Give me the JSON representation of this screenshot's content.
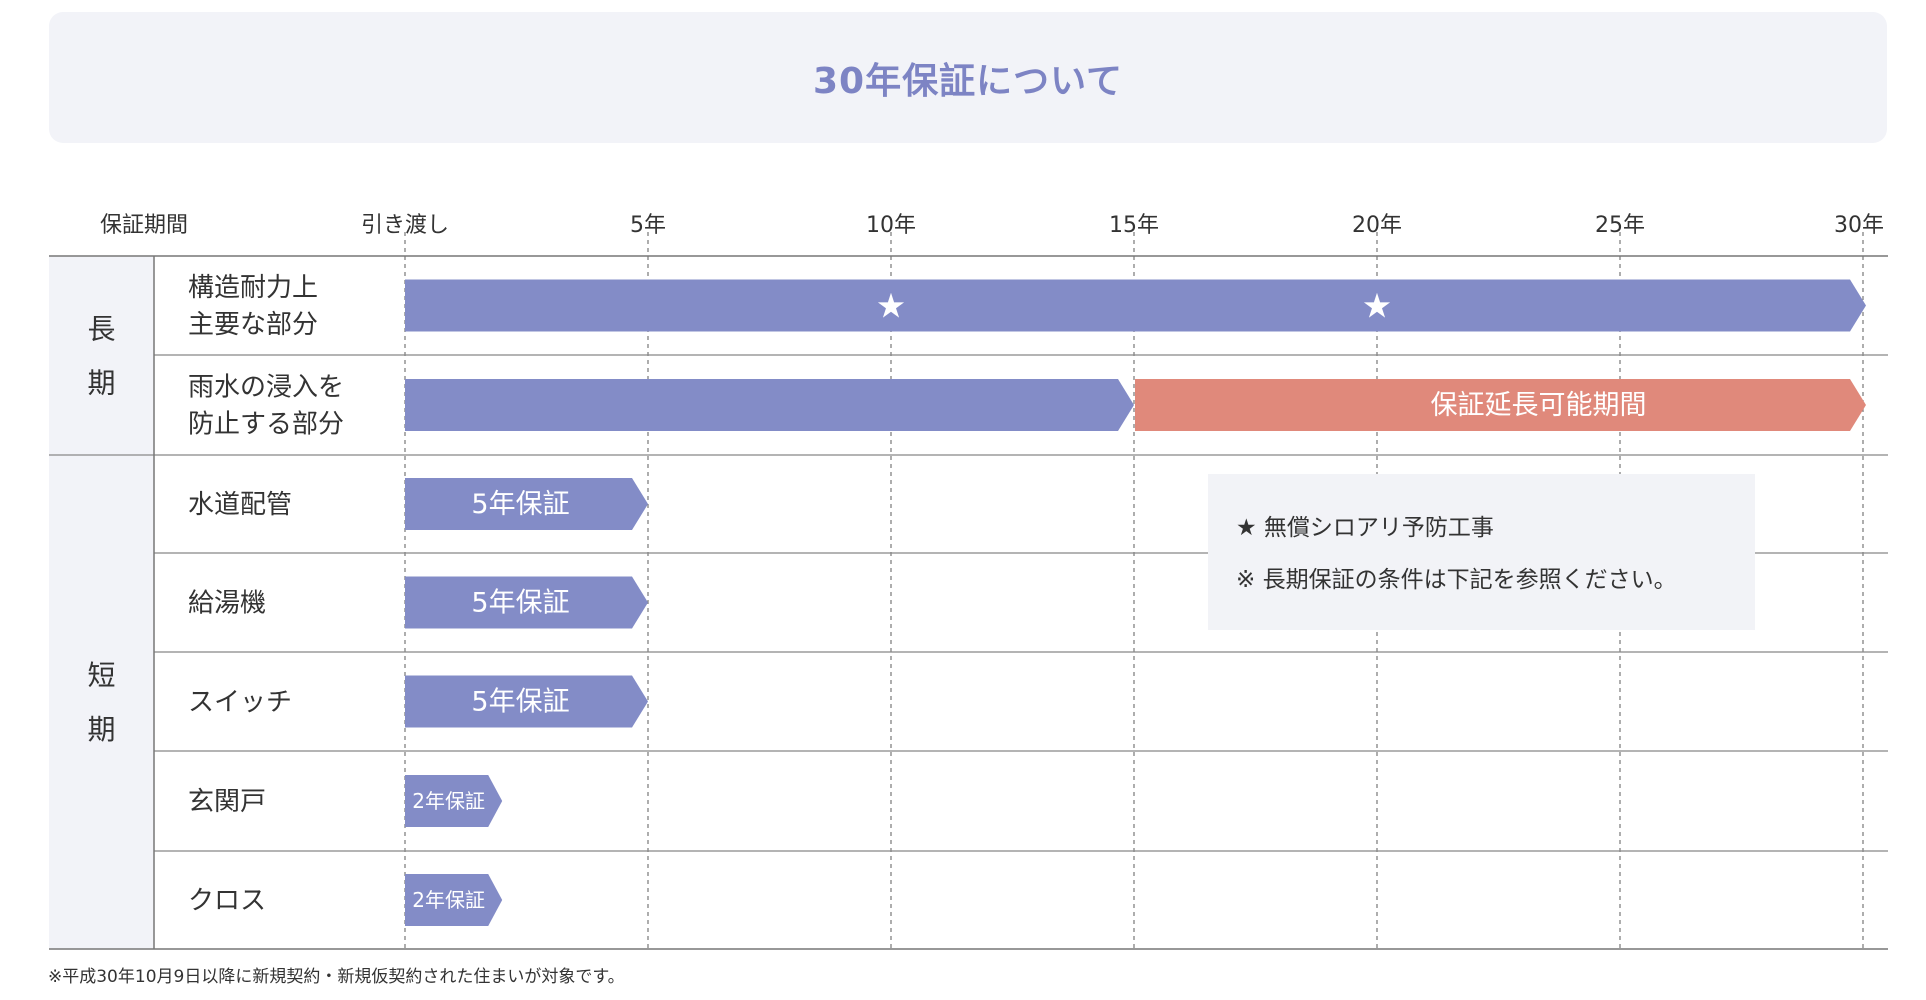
{
  "title": "30年保証について",
  "footnote": "※平成30年10月9日以降に新規契約・新規仮契約された住まいが対象です。",
  "colors": {
    "bar": "#838cc7",
    "extension": "#e0897b",
    "title": "#7d84c4",
    "header_bg": "#f2f3f8",
    "legend_bg": "#f2f3f7"
  },
  "legend": {
    "line1": "★ 無償シロアリ予防工事",
    "line2": "※ 長期保証の条件は下記を参照ください。"
  },
  "chart_data": {
    "type": "gantt",
    "xlabel": "保証期間",
    "xlim": [
      0,
      30
    ],
    "ticks": [
      {
        "value": 0,
        "label": "引き渡し"
      },
      {
        "value": 5,
        "label": "5年"
      },
      {
        "value": 10,
        "label": "10年"
      },
      {
        "value": 15,
        "label": "15年"
      },
      {
        "value": 20,
        "label": "20年"
      },
      {
        "value": 25,
        "label": "25年"
      },
      {
        "value": 30,
        "label": "30年"
      }
    ],
    "groups": [
      {
        "label": "長期",
        "rows": [
          0,
          1
        ]
      },
      {
        "label": "短期",
        "rows": [
          2,
          3,
          4,
          5,
          6
        ]
      }
    ],
    "rows": [
      {
        "label_lines": [
          "構造耐力上",
          "主要な部分"
        ],
        "bars": [
          {
            "start": 0,
            "end": 30,
            "color": "bar",
            "label": "",
            "size": "large"
          }
        ],
        "stars": [
          10,
          20
        ]
      },
      {
        "label_lines": [
          "雨水の浸入を",
          "防止する部分"
        ],
        "bars": [
          {
            "start": 0,
            "end": 15,
            "color": "bar",
            "label": "",
            "size": "large"
          },
          {
            "start": 15,
            "end": 30,
            "color": "extension",
            "label": "保証延長可能期間",
            "size": "large"
          }
        ],
        "stars": []
      },
      {
        "label_lines": [
          "水道配管"
        ],
        "bars": [
          {
            "start": 0,
            "end": 5,
            "color": "bar",
            "label": "5年保証",
            "size": "large"
          }
        ],
        "stars": []
      },
      {
        "label_lines": [
          "給湯機"
        ],
        "bars": [
          {
            "start": 0,
            "end": 5,
            "color": "bar",
            "label": "5年保証",
            "size": "large"
          }
        ],
        "stars": []
      },
      {
        "label_lines": [
          "スイッチ"
        ],
        "bars": [
          {
            "start": 0,
            "end": 5,
            "color": "bar",
            "label": "5年保証",
            "size": "large"
          }
        ],
        "stars": []
      },
      {
        "label_lines": [
          "玄関戸"
        ],
        "bars": [
          {
            "start": 0,
            "end": 2,
            "color": "bar",
            "label": "2年保証",
            "size": "small"
          }
        ],
        "stars": []
      },
      {
        "label_lines": [
          "クロス"
        ],
        "bars": [
          {
            "start": 0,
            "end": 2,
            "color": "bar",
            "label": "2年保証",
            "size": "small"
          }
        ],
        "stars": []
      }
    ]
  }
}
